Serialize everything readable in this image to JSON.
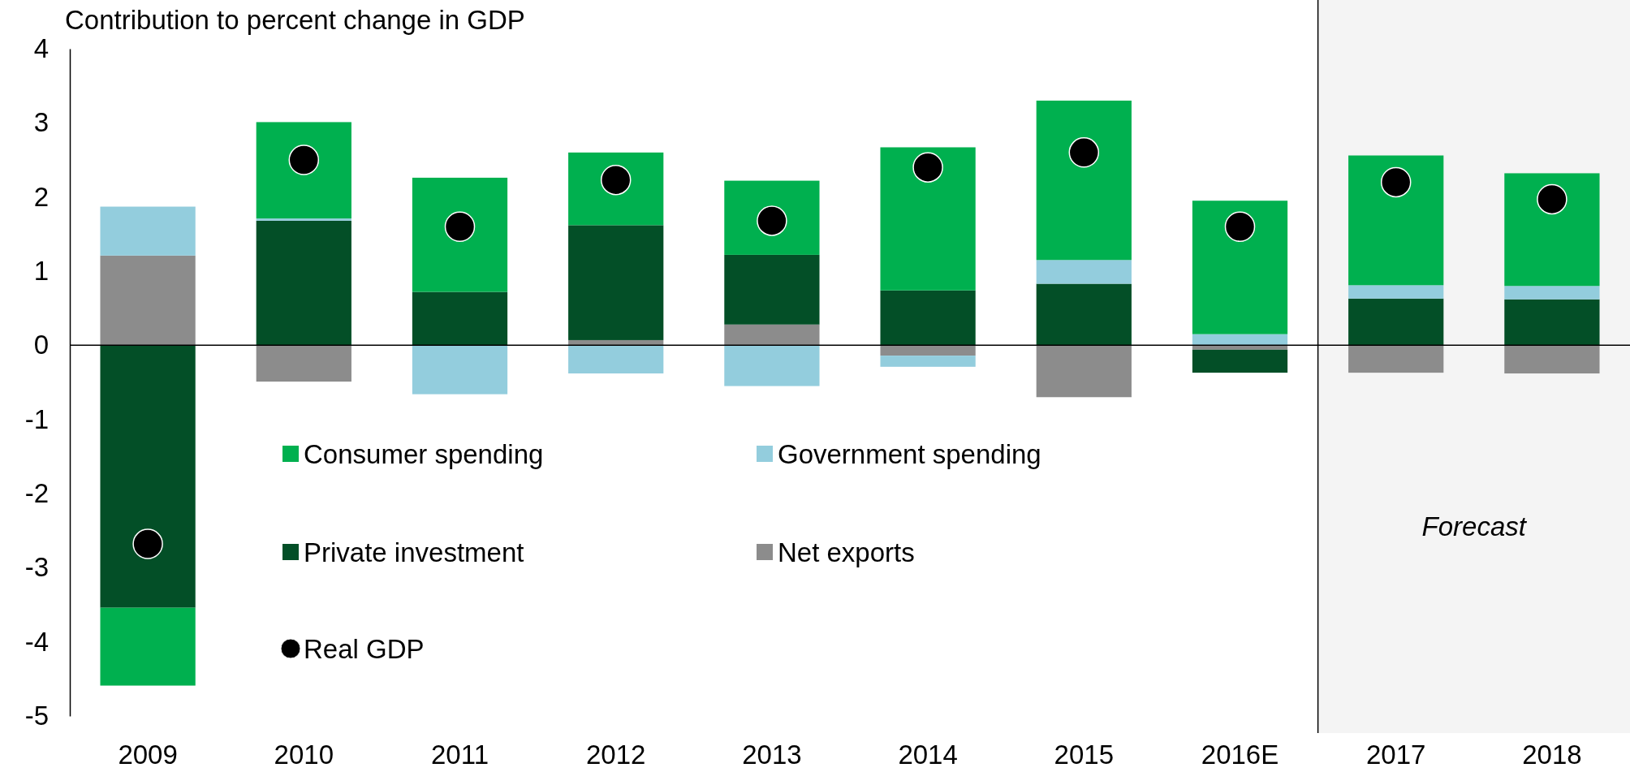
{
  "chart_data": {
    "type": "bar",
    "stacked": true,
    "title": "Contribution to percent change in GDP",
    "categories": [
      "2009",
      "2010",
      "2011",
      "2012",
      "2013",
      "2014",
      "2015",
      "2016E",
      "2017",
      "2018"
    ],
    "series": [
      {
        "name": "Net exports",
        "color": "#8c8c8c",
        "values": [
          1.21,
          -0.49,
          null,
          0.07,
          0.28,
          -0.14,
          -0.7,
          -0.06,
          -0.37,
          -0.38
        ]
      },
      {
        "name": "Private investment",
        "color": "#034f27",
        "values": [
          -3.54,
          1.68,
          0.72,
          1.55,
          0.94,
          0.74,
          0.83,
          -0.31,
          0.63,
          0.62
        ]
      },
      {
        "name": "Government spending",
        "color": "#93cddd",
        "values": [
          0.66,
          0.03,
          -0.66,
          -0.38,
          -0.55,
          -0.15,
          0.32,
          0.15,
          0.18,
          0.18
        ]
      },
      {
        "name": "Consumer spending",
        "color": "#00b04f",
        "values": [
          -1.05,
          1.3,
          1.54,
          0.98,
          1.0,
          1.93,
          2.15,
          1.8,
          1.75,
          1.52
        ]
      },
      {
        "name": "Real GDP",
        "type": "scatter",
        "color": "#000000",
        "values": [
          -2.68,
          2.5,
          1.6,
          2.23,
          1.68,
          2.4,
          2.6,
          1.6,
          2.2,
          1.97
        ]
      }
    ],
    "ylim": [
      -5,
      4
    ],
    "yticks": [
      {
        "value": -5,
        "label": "-5"
      },
      {
        "value": -4,
        "label": "-4"
      },
      {
        "value": -3,
        "label": "-3"
      },
      {
        "value": -2,
        "label": "-2"
      },
      {
        "value": -1,
        "label": "-1"
      },
      0,
      1,
      2,
      3,
      4
    ],
    "bands": [
      {
        "axis": "x",
        "from": "2017",
        "to": "2018",
        "label": "Forecast",
        "color": "#f4f4f4"
      }
    ],
    "ref_lines": [
      {
        "axis": "y",
        "value": 0
      }
    ],
    "marker": "circle",
    "legend": "bottom"
  }
}
